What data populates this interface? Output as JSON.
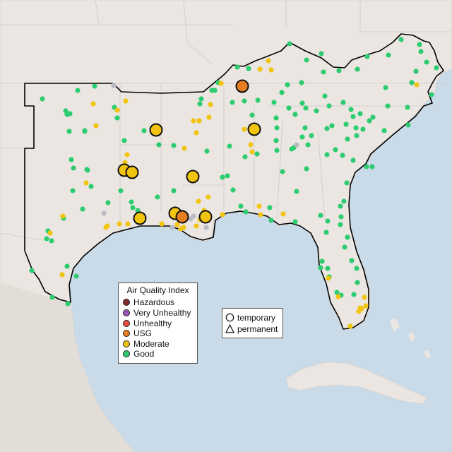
{
  "legend": {
    "title": "Air Quality Index",
    "categories": [
      {
        "label": "Hazardous",
        "color": "#7e2a2a"
      },
      {
        "label": "Very Unhealthy",
        "color": "#9b59b6"
      },
      {
        "label": "Unhealthy",
        "color": "#e74c3c"
      },
      {
        "label": "USG",
        "color": "#e67e22"
      },
      {
        "label": "Moderate",
        "color": "#f1c40f"
      },
      {
        "label": "Good",
        "color": "#2ecc71"
      }
    ]
  },
  "shape_legend": {
    "temporary": "temporary",
    "permanent": "permanent"
  },
  "colors": {
    "land": "#ebe6e2",
    "water": "#c9dbe8",
    "region_outline": "#000000",
    "good": "#2ecc71",
    "moderate": "#f1c40f",
    "usg": "#e67e22",
    "no_data": "#b8bcc2"
  },
  "monitors": {
    "large_moderate": [
      [
        221,
        184
      ],
      [
        360,
        183
      ],
      [
        176,
        241
      ],
      [
        187,
        244
      ],
      [
        273,
        250
      ],
      [
        198,
        309
      ],
      [
        248,
        302
      ],
      [
        291,
        307
      ]
    ],
    "large_usg": [
      [
        343,
        122
      ],
      [
        258,
        307
      ]
    ],
    "small_moderate": [
      [
        380,
        86
      ],
      [
        384,
        99
      ],
      [
        368,
        98
      ],
      [
        313,
        118
      ],
      [
        178,
        143
      ],
      [
        132,
        147
      ],
      [
        166,
        156
      ],
      [
        298,
        148
      ],
      [
        296,
        166
      ],
      [
        274,
        171
      ],
      [
        282,
        171
      ],
      [
        136,
        178
      ],
      [
        346,
        183
      ],
      [
        278,
        188
      ],
      [
        355,
        205
      ],
      [
        357,
        215
      ],
      [
        261,
        210
      ],
      [
        180,
        219
      ],
      [
        177,
        230
      ],
      [
        122,
        259
      ],
      [
        295,
        279
      ],
      [
        281,
        285
      ],
      [
        169,
        317
      ],
      [
        181,
        317
      ],
      [
        150,
        322
      ],
      [
        152,
        320
      ],
      [
        229,
        317
      ],
      [
        251,
        318
      ],
      [
        260,
        322
      ],
      [
        256,
        324
      ],
      [
        278,
        320
      ],
      [
        283,
        311
      ],
      [
        289,
        298
      ],
      [
        315,
        304
      ],
      [
        369,
        304
      ],
      [
        401,
        303
      ],
      [
        89,
        306
      ],
      [
        71,
        330
      ],
      [
        88,
        389
      ],
      [
        465,
        394
      ],
      [
        479,
        420
      ],
      [
        516,
        421
      ],
      [
        518,
        433
      ],
      [
        512,
        437
      ],
      [
        508,
        441
      ],
      [
        510,
        436
      ],
      [
        496,
        462
      ],
      [
        590,
        120
      ],
      [
        367,
        292
      ]
    ],
    "small_good": [
      [
        410,
        62
      ],
      [
        455,
        76
      ],
      [
        434,
        85
      ],
      [
        458,
        102
      ],
      [
        480,
        100
      ],
      [
        506,
        98
      ],
      [
        520,
        80
      ],
      [
        550,
        78
      ],
      [
        568,
        56
      ],
      [
        594,
        63
      ],
      [
        596,
        73
      ],
      [
        604,
        88
      ],
      [
        618,
        96
      ],
      [
        589,
        101
      ],
      [
        583,
        117
      ],
      [
        546,
        124
      ],
      [
        460,
        136
      ],
      [
        399,
        131
      ],
      [
        427,
        117
      ],
      [
        407,
        120
      ],
      [
        352,
        97
      ],
      [
        336,
        95
      ],
      [
        309,
        117
      ],
      [
        283,
        147
      ],
      [
        304,
        128
      ],
      [
        329,
        145
      ],
      [
        346,
        143
      ],
      [
        357,
        163
      ],
      [
        388,
        145
      ],
      [
        391,
        167
      ],
      [
        409,
        153
      ],
      [
        418,
        162
      ],
      [
        433,
        153
      ],
      [
        428,
        146
      ],
      [
        448,
        157
      ],
      [
        466,
        150
      ],
      [
        486,
        145
      ],
      [
        497,
        155
      ],
      [
        510,
        161
      ],
      [
        528,
        166
      ],
      [
        549,
        150
      ],
      [
        577,
        152
      ],
      [
        611,
        134
      ],
      [
        578,
        177
      ],
      [
        544,
        185
      ],
      [
        523,
        171
      ],
      [
        514,
        183
      ],
      [
        504,
        181
      ],
      [
        500,
        165
      ],
      [
        490,
        176
      ],
      [
        463,
        182
      ],
      [
        470,
        178
      ],
      [
        441,
        192
      ],
      [
        432,
        181
      ],
      [
        428,
        194
      ],
      [
        416,
        209
      ],
      [
        413,
        211
      ],
      [
        436,
        205
      ],
      [
        475,
        212
      ],
      [
        492,
        197
      ],
      [
        505,
        192
      ],
      [
        527,
        236
      ],
      [
        519,
        236
      ],
      [
        500,
        227
      ],
      [
        485,
        220
      ],
      [
        463,
        219
      ],
      [
        434,
        239
      ],
      [
        420,
        271
      ],
      [
        400,
        243
      ],
      [
        392,
        181
      ],
      [
        391,
        199
      ],
      [
        392,
        213
      ],
      [
        364,
        218
      ],
      [
        347,
        222
      ],
      [
        322,
        249
      ],
      [
        330,
        269
      ],
      [
        341,
        292
      ],
      [
        348,
        300
      ],
      [
        382,
        294
      ],
      [
        384,
        312
      ],
      [
        418,
        314
      ],
      [
        454,
        305
      ],
      [
        464,
        313
      ],
      [
        482,
        318
      ],
      [
        483,
        307
      ],
      [
        482,
        292
      ],
      [
        487,
        285
      ],
      [
        491,
        259
      ],
      [
        462,
        329
      ],
      [
        488,
        350
      ],
      [
        492,
        336
      ],
      [
        456,
        370
      ],
      [
        454,
        379
      ],
      [
        464,
        380
      ],
      [
        466,
        392
      ],
      [
        477,
        414
      ],
      [
        483,
        418
      ],
      [
        498,
        369
      ],
      [
        505,
        380
      ],
      [
        506,
        400
      ],
      [
        501,
        417
      ],
      [
        110,
        128
      ],
      [
        134,
        122
      ],
      [
        60,
        140
      ],
      [
        93,
        157
      ],
      [
        95,
        162
      ],
      [
        99,
        161
      ],
      [
        120,
        185
      ],
      [
        98,
        186
      ],
      [
        120,
        186
      ],
      [
        162,
        152
      ],
      [
        166,
        167
      ],
      [
        176,
        199
      ],
      [
        104,
        238
      ],
      [
        101,
        226
      ],
      [
        123,
        240
      ],
      [
        124,
        241
      ],
      [
        129,
        264
      ],
      [
        103,
        270
      ],
      [
        153,
        287
      ],
      [
        186,
        286
      ],
      [
        188,
        294
      ],
      [
        195,
        298
      ],
      [
        117,
        296
      ],
      [
        90,
        309
      ],
      [
        68,
        327
      ],
      [
        66,
        338
      ],
      [
        73,
        341
      ],
      [
        45,
        383
      ],
      [
        95,
        377
      ],
      [
        108,
        391
      ],
      [
        74,
        421
      ],
      [
        96,
        430
      ],
      [
        171,
        270
      ],
      [
        223,
        279
      ],
      [
        246,
        270
      ],
      [
        246,
        206
      ],
      [
        293,
        214
      ],
      [
        315,
        251
      ],
      [
        325,
        207
      ],
      [
        300,
        128
      ],
      [
        365,
        142
      ],
      [
        342,
        127
      ],
      [
        285,
        140
      ],
      [
        204,
        185
      ],
      [
        225,
        205
      ]
    ],
    "small_no_data": [
      [
        161,
        121
      ],
      [
        147,
        302
      ],
      [
        244,
        322
      ],
      [
        292,
        322
      ],
      [
        274,
        306
      ],
      [
        270,
        310
      ],
      [
        420,
        205
      ]
    ]
  }
}
